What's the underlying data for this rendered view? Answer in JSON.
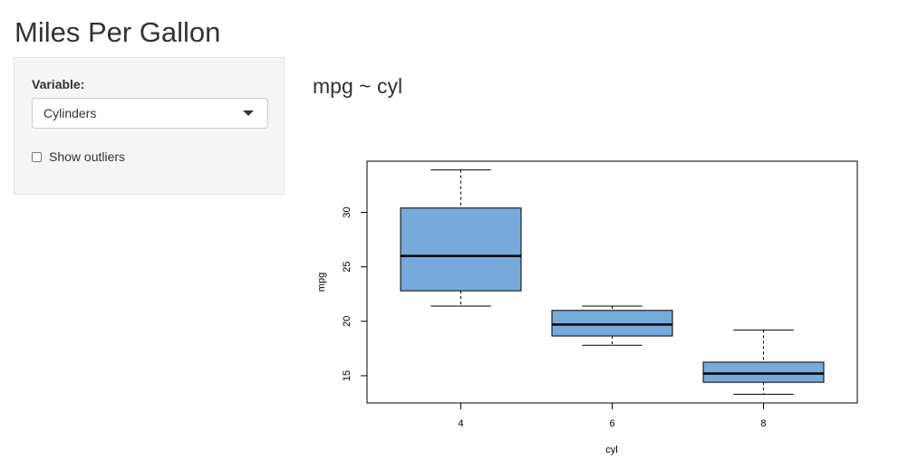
{
  "app": {
    "title": "Miles Per Gallon"
  },
  "sidebar": {
    "variable_label": "Variable:",
    "variable_select": {
      "selected": "Cylinders"
    },
    "outliers_checkbox": {
      "label": "Show outliers",
      "checked": false
    }
  },
  "main": {
    "plot_title": "mpg ~ cyl"
  },
  "chart_data": {
    "type": "boxplot",
    "xlabel": "cyl",
    "ylabel": "mpg",
    "categories": [
      "4",
      "6",
      "8"
    ],
    "ylim": [
      12.5,
      34.7
    ],
    "yticks": [
      15,
      20,
      25,
      30
    ],
    "box_color": "#75aadb",
    "boxes": [
      {
        "category": "4",
        "min": 21.4,
        "q1": 22.8,
        "median": 26.0,
        "q3": 30.4,
        "max": 33.9
      },
      {
        "category": "6",
        "min": 17.8,
        "q1": 18.65,
        "median": 19.7,
        "q3": 21.0,
        "max": 21.4
      },
      {
        "category": "8",
        "min": 13.3,
        "q1": 14.4,
        "median": 15.2,
        "q3": 16.25,
        "max": 19.2
      }
    ]
  }
}
